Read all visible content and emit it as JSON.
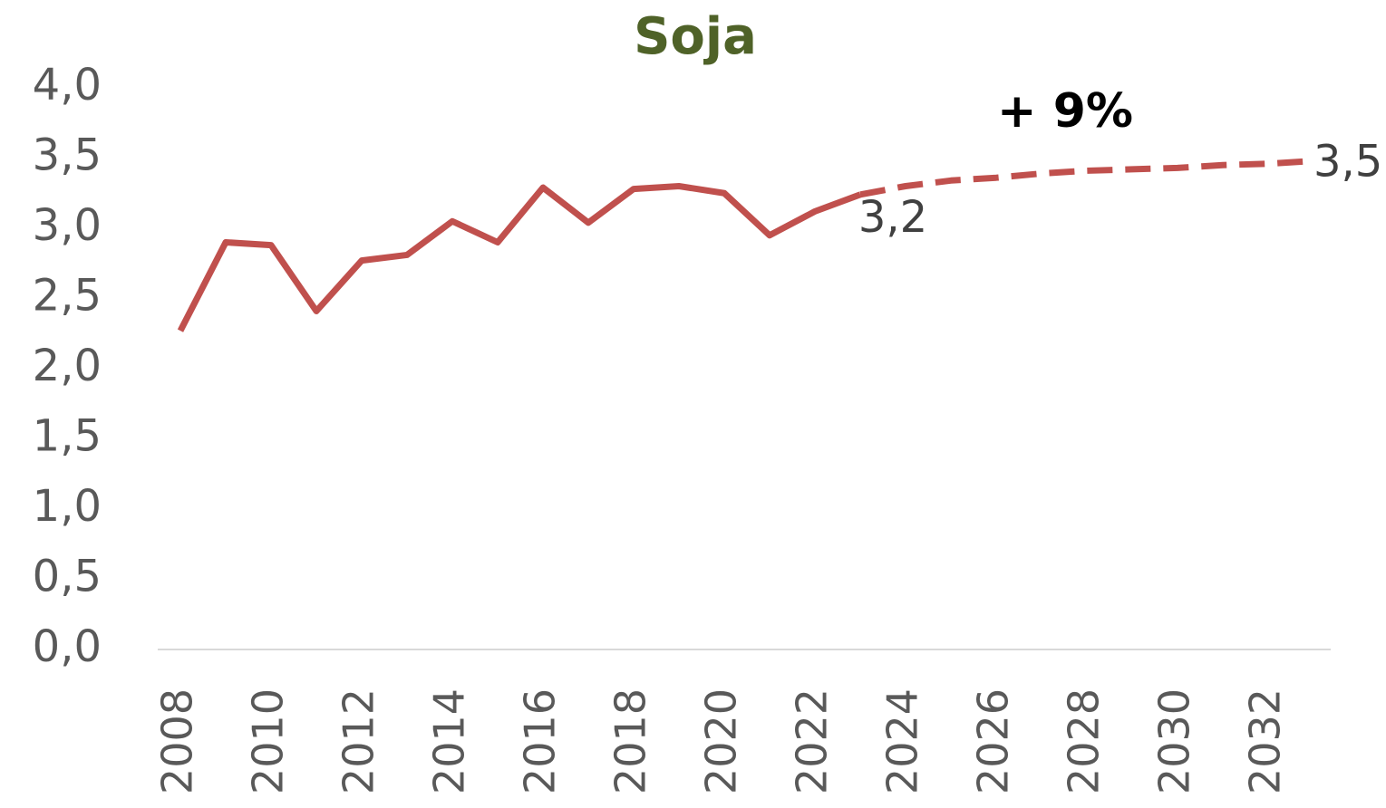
{
  "chart_data": {
    "type": "line",
    "title": "Soja",
    "annotation": "+ 9%",
    "x": [
      2008,
      2009,
      2010,
      2011,
      2012,
      2013,
      2014,
      2015,
      2016,
      2017,
      2018,
      2019,
      2020,
      2021,
      2022,
      2023,
      2024,
      2025,
      2026,
      2027,
      2028,
      2029,
      2030,
      2031,
      2032,
      2033
    ],
    "series": [
      {
        "color": "#c0504d",
        "style": "solid",
        "values": [
          2.27,
          2.9,
          2.88,
          2.41,
          2.77,
          2.81,
          3.05,
          2.9,
          3.29,
          3.04,
          3.28,
          3.3,
          3.25,
          2.95,
          3.12,
          3.24,
          null,
          null,
          null,
          null,
          null,
          null,
          null,
          null,
          null,
          null
        ],
        "value_labels": [
          null,
          null,
          null,
          null,
          null,
          null,
          null,
          null,
          null,
          null,
          null,
          null,
          null,
          null,
          null,
          "3,2",
          null,
          null,
          null,
          null,
          null,
          null,
          null,
          null,
          null,
          null
        ]
      },
      {
        "color": "#c0504d",
        "style": "dashed",
        "values": [
          null,
          null,
          null,
          null,
          null,
          null,
          null,
          null,
          null,
          null,
          null,
          null,
          null,
          null,
          null,
          3.24,
          3.3,
          3.34,
          3.36,
          3.39,
          3.41,
          3.42,
          3.43,
          3.45,
          3.46,
          3.48
        ],
        "value_labels": [
          null,
          null,
          null,
          null,
          null,
          null,
          null,
          null,
          null,
          null,
          null,
          null,
          null,
          null,
          null,
          null,
          null,
          null,
          null,
          null,
          null,
          null,
          null,
          null,
          null,
          "3,5"
        ]
      }
    ],
    "xlim": [
      2007.5,
      2033.5
    ],
    "xticks": [
      2008,
      2010,
      2012,
      2014,
      2016,
      2018,
      2020,
      2022,
      2024,
      2026,
      2028,
      2030,
      2032
    ],
    "ylim": [
      0,
      4
    ],
    "yticks": [
      {
        "value": 0,
        "label": "0,0"
      },
      {
        "value": 0.5,
        "label": "0,5"
      },
      {
        "value": 1,
        "label": "1,0"
      },
      {
        "value": 1.5,
        "label": "1,5"
      },
      {
        "value": 2,
        "label": "2,0"
      },
      {
        "value": 2.5,
        "label": "2,5"
      },
      {
        "value": 3,
        "label": "3,0"
      },
      {
        "value": 3.5,
        "label": "3,5"
      },
      {
        "value": 4,
        "label": "4,0"
      }
    ],
    "grid": false
  }
}
